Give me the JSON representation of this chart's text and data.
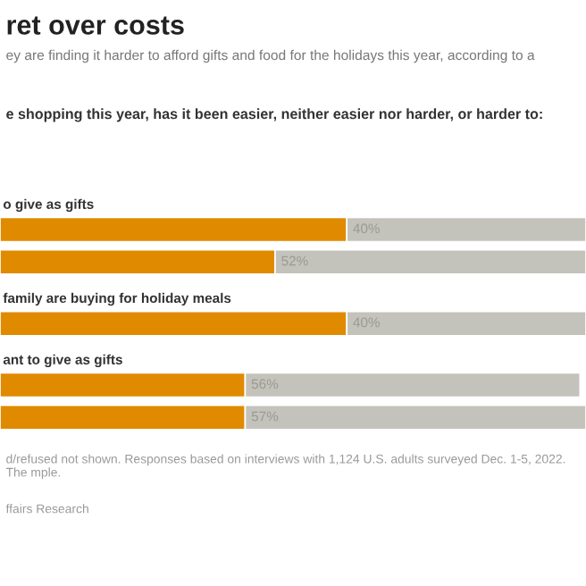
{
  "chart_data": {
    "type": "bar",
    "orientation": "horizontal",
    "stacked": true,
    "title": "ret over costs",
    "subtitle": "ey are finding it harder to afford gifts and food for the holidays this year, according to a",
    "categories": [
      "o give as gifts",
      null,
      "family are buying for holiday meals",
      "ant to give as gifts",
      null
    ],
    "series": [
      {
        "color": "#e08a00",
        "values": [
          58,
          46,
          58,
          41,
          41
        ]
      },
      {
        "color": "#c4c3bb",
        "values": [
          40,
          52,
          40,
          56,
          57
        ],
        "value_labels": [
          "40%",
          "52%",
          "40%",
          "56%",
          "57%"
        ]
      }
    ],
    "annotations": [
      "e shopping this year, has it been easier, neither easier nor harder, or harder to:",
      "d/refused not shown. Responses based on interviews with 1,124 U.S. adults surveyed Dec. 1-5, 2022. The mple.",
      "ffairs Research"
    ]
  }
}
